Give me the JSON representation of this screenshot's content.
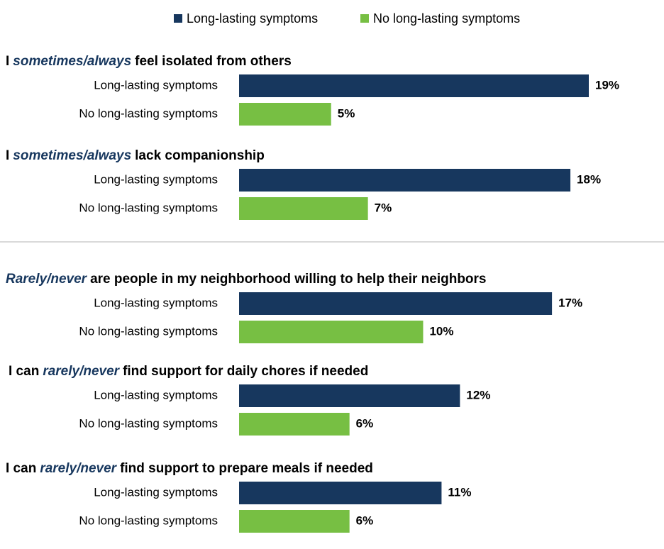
{
  "chart_data": {
    "type": "bar",
    "orientation": "horizontal",
    "legend": "top",
    "xlim": [
      0,
      19
    ],
    "categories": [
      [
        {
          "text": "I",
          "italic": false
        },
        {
          "text": "sometimes/always",
          "italic": true
        },
        {
          "text": "feel isolated from others",
          "italic": false
        }
      ],
      [
        {
          "text": "I",
          "italic": false
        },
        {
          "text": "sometimes/always",
          "italic": true
        },
        {
          "text": "lack companionship",
          "italic": false
        }
      ],
      [
        {
          "text": "Rarely/never",
          "italic": true
        },
        {
          "text": "are people in my neighborhood willing to help their neighbors",
          "italic": false
        }
      ],
      [
        {
          "text": "I can",
          "italic": false
        },
        {
          "text": "rarely/never",
          "italic": true
        },
        {
          "text": "find support for daily chores if needed",
          "italic": false
        }
      ],
      [
        {
          "text": "I can",
          "italic": false
        },
        {
          "text": "rarely/never",
          "italic": true
        },
        {
          "text": "find support to prepare meals if needed",
          "italic": false
        }
      ]
    ],
    "series": [
      {
        "name": "Long-lasting symptoms",
        "color": "#17375e",
        "values": [
          19,
          18,
          17,
          12,
          11
        ],
        "value_labels": [
          "19%",
          "18%",
          "17%",
          "12%",
          "11%"
        ]
      },
      {
        "name": "No long-lasting symptoms",
        "color": "#77bf43",
        "values": [
          5,
          7,
          10,
          6,
          6
        ],
        "value_labels": [
          "5%",
          "7%",
          "10%",
          "6%",
          "6%"
        ]
      }
    ]
  }
}
